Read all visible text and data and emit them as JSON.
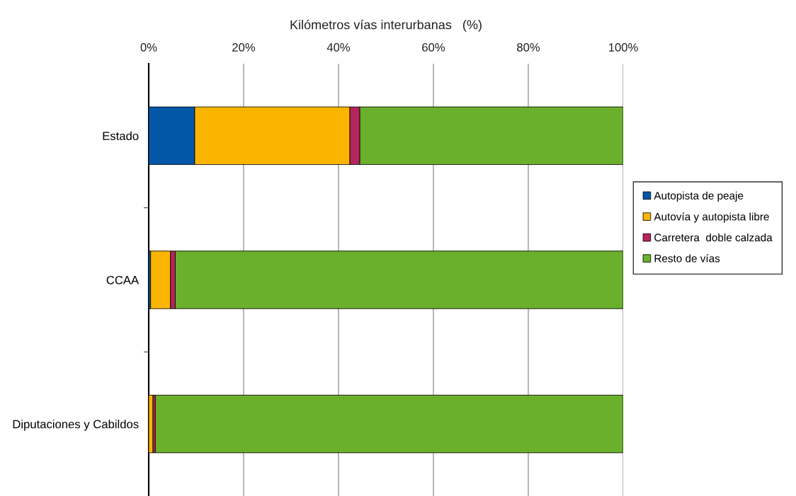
{
  "chart_data": {
    "type": "bar",
    "orientation": "horizontal",
    "stacked": true,
    "xlabel": "Kilómetros vías interurbanas   (%)",
    "categories": [
      "Estado",
      "CCAA",
      "Diputaciones y Cabildos"
    ],
    "series": [
      {
        "name": "Autopista de peaje",
        "color": "#0457a7",
        "values": [
          9.7,
          0.4,
          null
        ]
      },
      {
        "name": "Autovía y autopista libre",
        "color": "#fbb500",
        "values": [
          32.7,
          4.2,
          0.9
        ]
      },
      {
        "name": "Carretera  doble calzada",
        "color": "#b5245a",
        "values": [
          2.1,
          1.0,
          0.5
        ]
      },
      {
        "name": "Resto de vías",
        "color": "#6ab02d",
        "values": [
          55.5,
          94.4,
          98.6
        ]
      }
    ],
    "xlim": [
      0,
      100
    ],
    "xticks": [
      {
        "value": 0,
        "label": "0%"
      },
      {
        "value": 20,
        "label": "20%"
      },
      {
        "value": 40,
        "label": "40%"
      },
      {
        "value": 60,
        "label": "60%"
      },
      {
        "value": 80,
        "label": "80%"
      },
      {
        "value": 100,
        "label": "100%"
      }
    ],
    "grid": "x",
    "legend": "right"
  }
}
